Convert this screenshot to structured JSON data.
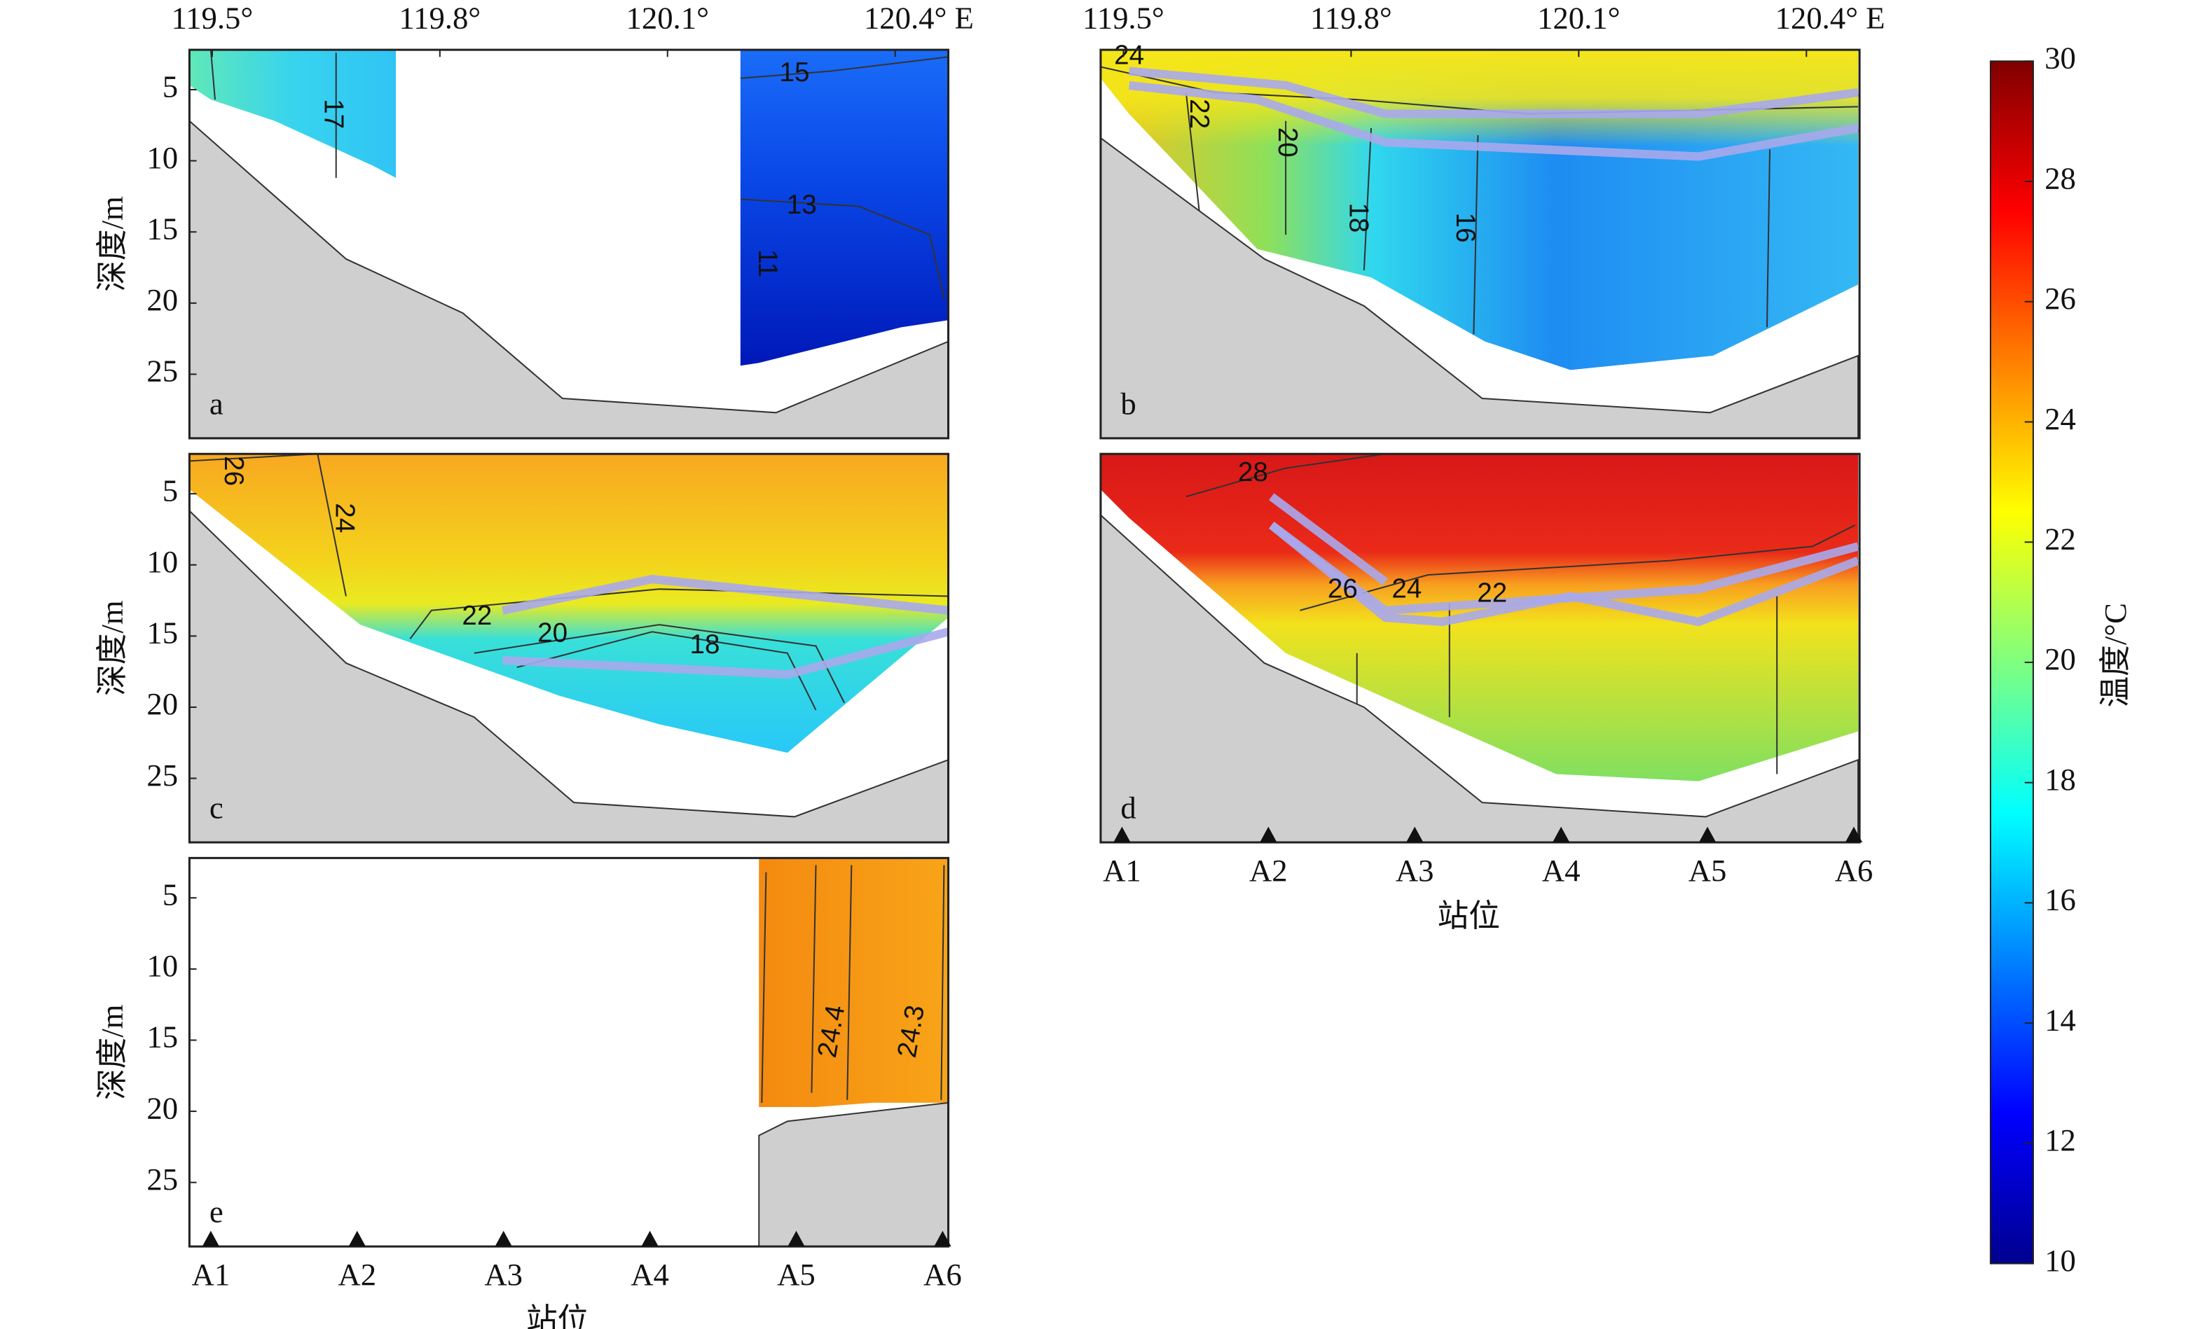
{
  "chart_data": [
    {
      "type": "contour",
      "label": "a",
      "ylabel": "深度/m",
      "ylim": [
        2.2,
        29.5
      ],
      "yticks": [
        5,
        10,
        15,
        20,
        25
      ],
      "x2lim": [
        119.47,
        120.47
      ],
      "x2ticks": [
        {
          "value": 119.5,
          "label": "119.5°"
        },
        {
          "value": 119.8,
          "label": "119.8°"
        },
        {
          "value": 120.1,
          "label": "120.1°"
        },
        {
          "value": 120.4,
          "label": "120.4° E"
        }
      ],
      "contour_labels": [
        17,
        15,
        13,
        11
      ]
    },
    {
      "type": "contour",
      "label": "b",
      "ylim": [
        2.2,
        29.5
      ],
      "x2lim": [
        119.47,
        120.47
      ],
      "x2ticks": [
        {
          "value": 119.5,
          "label": "119.5°"
        },
        {
          "value": 119.8,
          "label": "119.8°"
        },
        {
          "value": 120.1,
          "label": "120.1°"
        },
        {
          "value": 120.4,
          "label": "120.4° E"
        }
      ],
      "contour_labels": [
        24,
        22,
        20,
        18,
        16
      ]
    },
    {
      "type": "contour",
      "label": "c",
      "ylabel": "深度/m",
      "ylim": [
        2.2,
        29.5
      ],
      "yticks": [
        5,
        10,
        15,
        20,
        25
      ],
      "contour_labels": [
        26,
        24,
        22,
        20,
        18
      ]
    },
    {
      "type": "contour",
      "label": "d",
      "ylim": [
        2.2,
        29.5
      ],
      "xlabel": "站位",
      "categories": [
        "A1",
        "A2",
        "A3",
        "A4",
        "A5",
        "A6"
      ],
      "contour_labels": [
        28,
        26,
        24,
        22
      ]
    },
    {
      "type": "contour",
      "label": "e",
      "ylabel": "深度/m",
      "ylim": [
        2.2,
        29.5
      ],
      "yticks": [
        5,
        10,
        15,
        20,
        25
      ],
      "xlabel": "站位",
      "categories": [
        "A1",
        "A2",
        "A3",
        "A4",
        "A5",
        "A6"
      ],
      "contour_labels": [
        24.4,
        24.3
      ]
    },
    {
      "type": "colorbar",
      "ylabel": "温度/°C",
      "ylim": [
        10,
        30
      ],
      "yticks": [
        10,
        12,
        14,
        16,
        18,
        20,
        22,
        24,
        26,
        28,
        30
      ]
    }
  ]
}
